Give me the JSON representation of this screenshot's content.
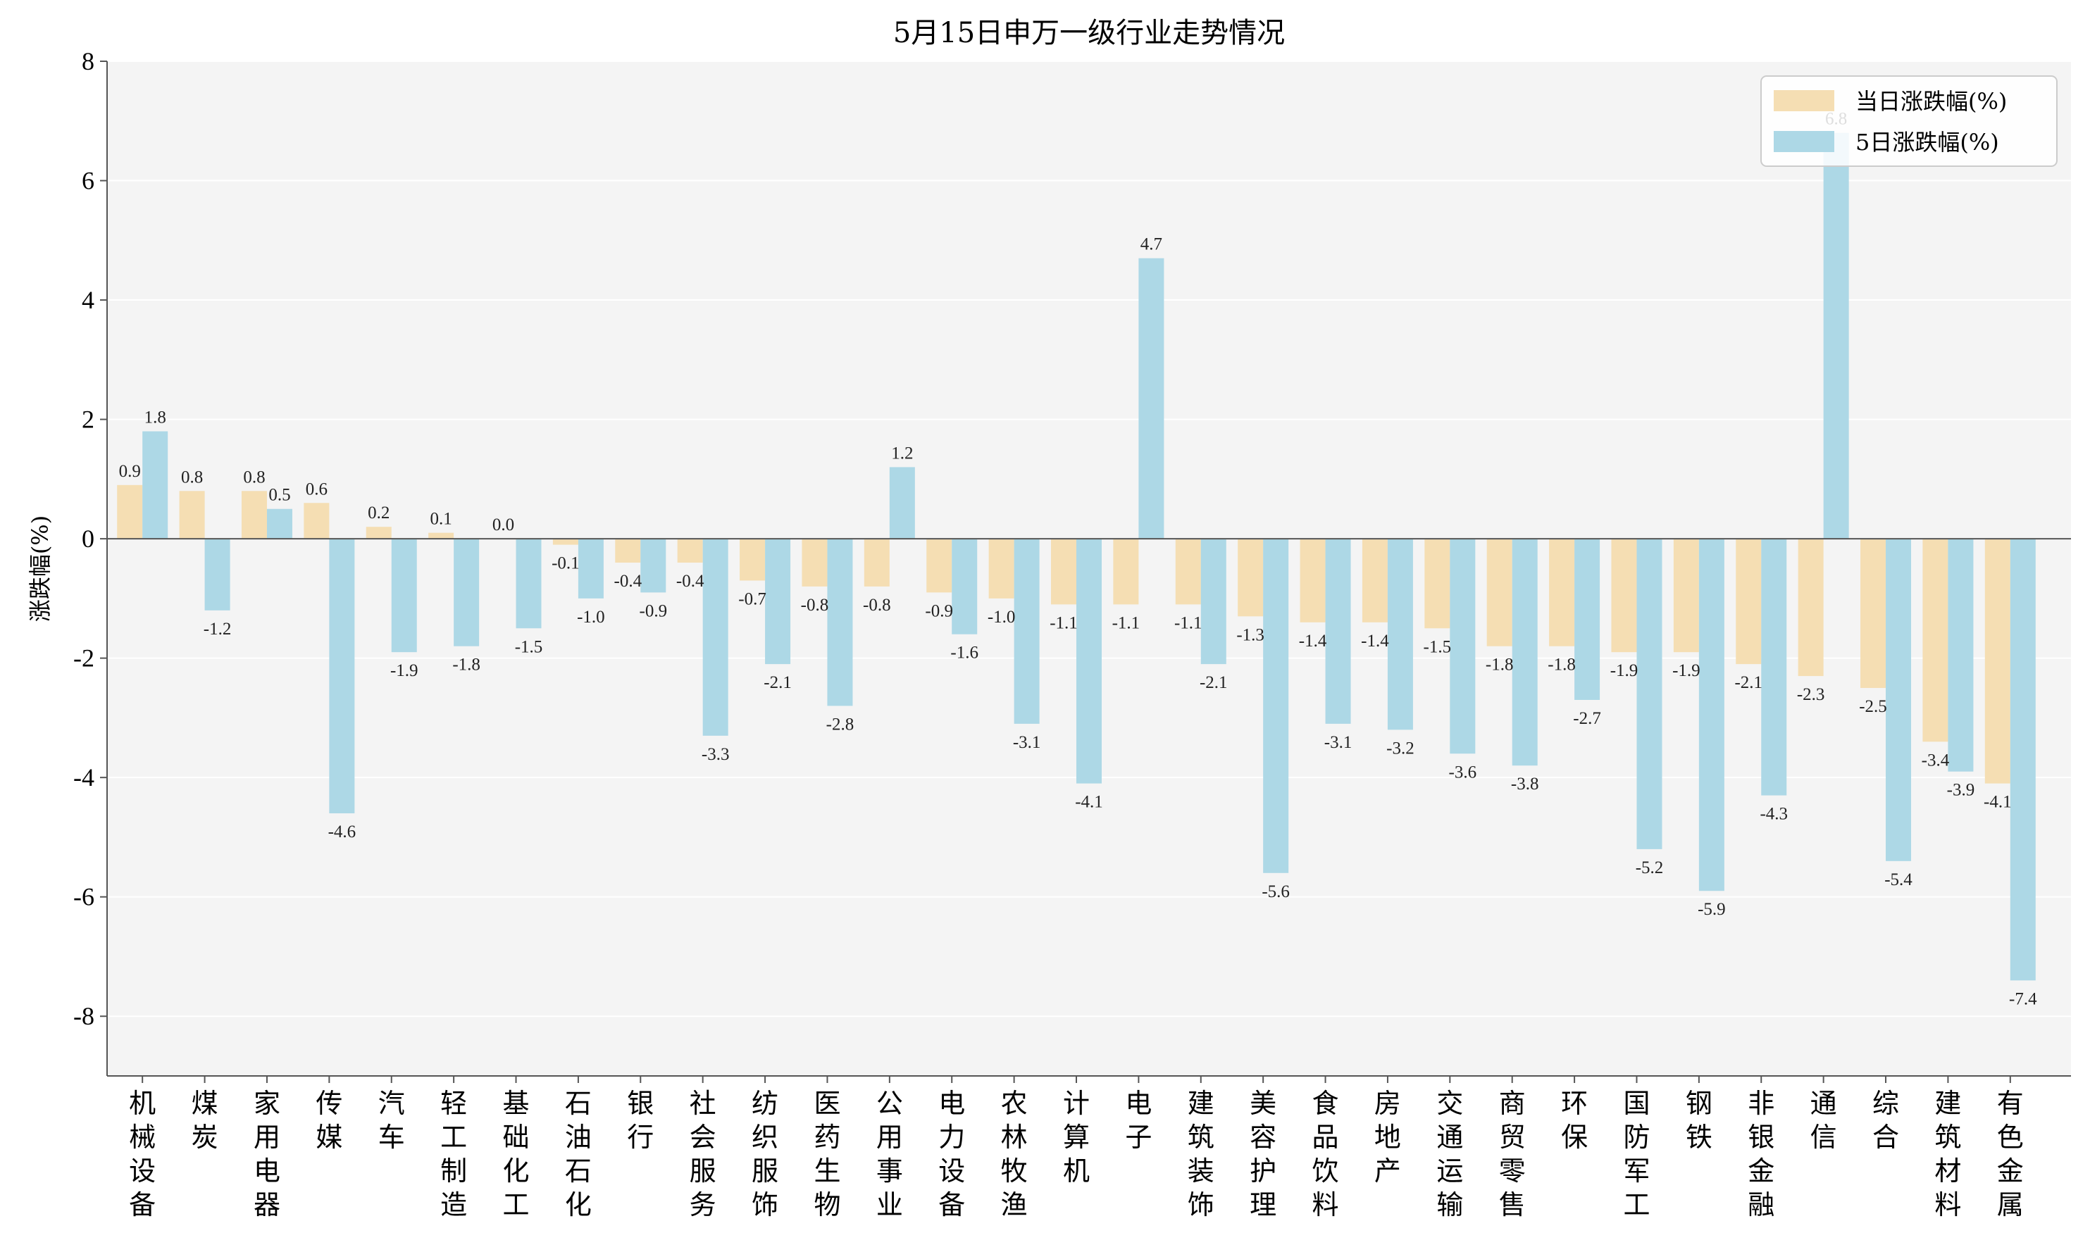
{
  "chart_data": {
    "type": "bar",
    "title": "5月15日申万一级行业走势情况",
    "ylabel": "涨跌幅(%)",
    "xlabel": "",
    "ylim": [
      -9,
      8
    ],
    "yticks": [
      8,
      6,
      4,
      2,
      0,
      -2,
      -4,
      -6,
      -8
    ],
    "ytick_labels": [
      "8",
      "6",
      "4",
      "2",
      "0",
      "-2",
      "-4",
      "-6",
      "-8"
    ],
    "grid": "horizontal",
    "legend_position": "top-right",
    "categories": [
      "机械设备",
      "煤炭",
      "家用电器",
      "传媒",
      "汽车",
      "轻工制造",
      "基础化工",
      "石油石化",
      "银行",
      "社会服务",
      "纺织服饰",
      "医药生物",
      "公用事业",
      "电力设备",
      "农林牧渔",
      "计算机",
      "电子",
      "建筑装饰",
      "美容护理",
      "食品饮料",
      "房地产",
      "交通运输",
      "商贸零售",
      "环保",
      "国防军工",
      "钢铁",
      "非银金融",
      "通信",
      "综合",
      "建筑材料",
      "有色金属"
    ],
    "series": [
      {
        "name": "当日涨跌幅(%)",
        "color": "#f5deb3",
        "values": [
          0.9,
          0.8,
          0.8,
          0.6,
          0.2,
          0.1,
          0.0,
          -0.1,
          -0.4,
          -0.4,
          -0.7,
          -0.8,
          -0.8,
          -0.9,
          -1.0,
          -1.1,
          -1.1,
          -1.1,
          -1.3,
          -1.4,
          -1.4,
          -1.5,
          -1.8,
          -1.8,
          -1.9,
          -1.9,
          -2.1,
          -2.3,
          -2.5,
          -3.4,
          -4.1
        ],
        "labels": [
          "0.9",
          "0.8",
          "0.8",
          "0.6",
          "0.2",
          "0.1",
          "0.0",
          "-0.1",
          "-0.4",
          "-0.4",
          "-0.7",
          "-0.8",
          "-0.8",
          "-0.9",
          "-1.0",
          "-1.1",
          "-1.1",
          "-1.1",
          "-1.3",
          "-1.4",
          "-1.4",
          "-1.5",
          "-1.8",
          "-1.8",
          "-1.9",
          "-1.9",
          "-2.1",
          "-2.3",
          "-2.5",
          "-3.4",
          "-4.1"
        ]
      },
      {
        "name": "5日涨跌幅(%)",
        "color": "#add8e6",
        "values": [
          1.8,
          -1.2,
          0.5,
          -4.6,
          -1.9,
          -1.8,
          -1.5,
          -1.0,
          -0.9,
          -3.3,
          -2.1,
          -2.8,
          1.2,
          -1.6,
          -3.1,
          -4.1,
          4.7,
          -2.1,
          -5.6,
          -3.1,
          -3.2,
          -3.6,
          -3.8,
          -2.7,
          -5.2,
          -5.9,
          -4.3,
          6.8,
          -5.4,
          -3.9,
          -7.4
        ],
        "labels": [
          "1.8",
          "-1.2",
          "0.5",
          "-4.6",
          "-1.9",
          "-1.8",
          "-1.5",
          "-1.0",
          "-0.9",
          "-3.3",
          "-2.1",
          "-2.8",
          "1.2",
          "-1.6",
          "-3.1",
          "-4.1",
          "4.7",
          "-2.1",
          "-5.6",
          "-3.1",
          "-3.2",
          "-3.6",
          "-3.8",
          "-2.7",
          "-5.2",
          "-5.9",
          "-4.3",
          "6.8",
          "-5.4",
          "-3.9",
          "-7.4"
        ]
      }
    ]
  }
}
